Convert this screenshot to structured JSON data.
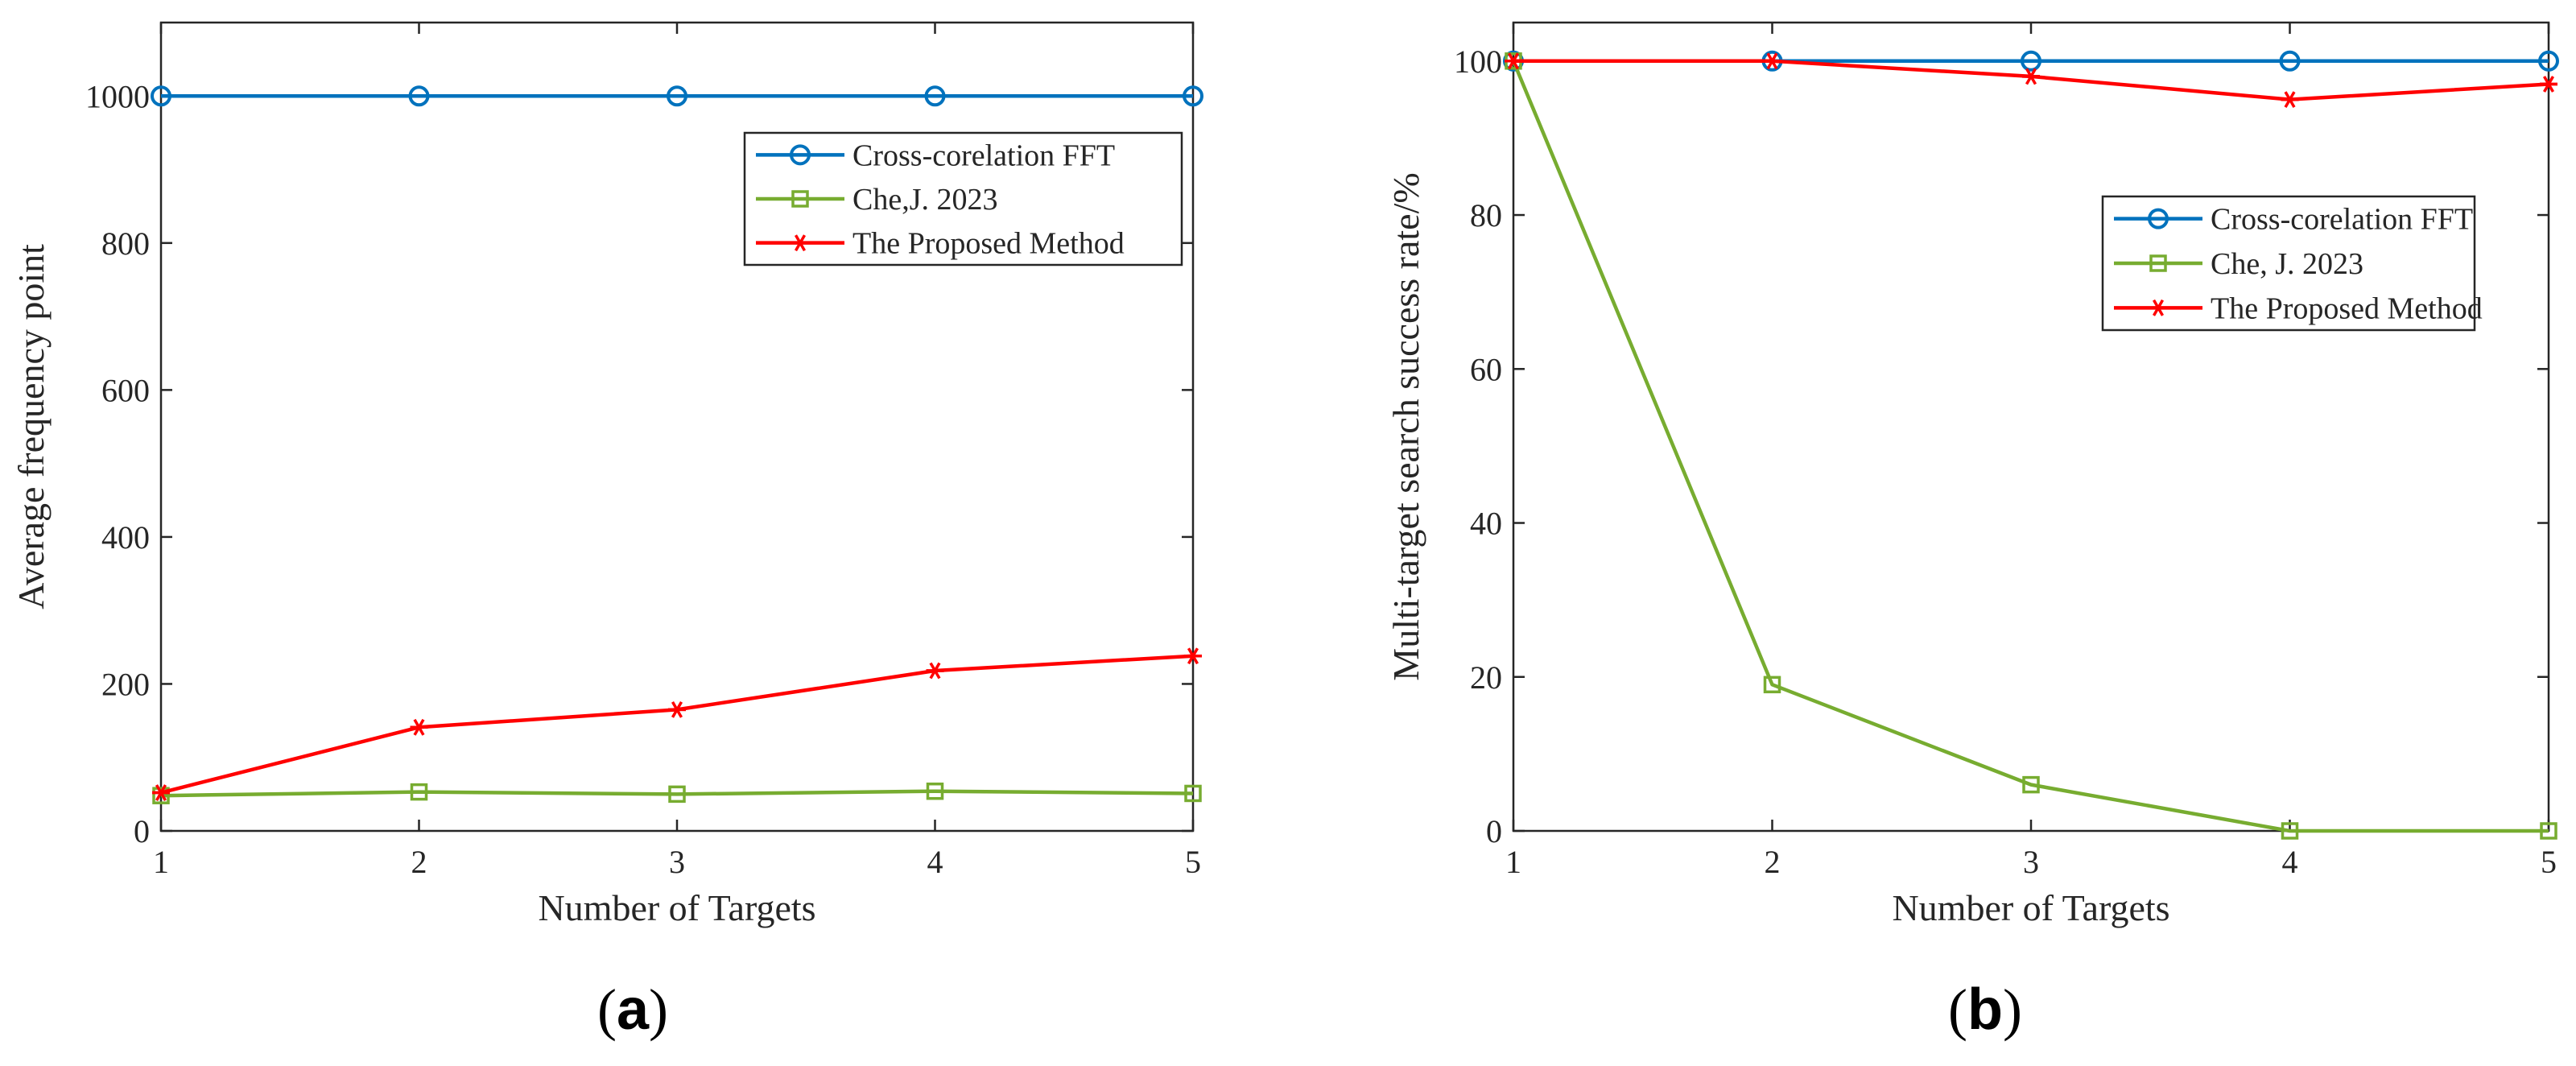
{
  "chart_data": [
    {
      "type": "line",
      "panel_label": "(a)",
      "panel_letter": "a",
      "title": "",
      "xlabel": "Number of Targets",
      "ylabel": "Average frequency point",
      "xlim": [
        1,
        5
      ],
      "ylim": [
        0,
        1100
      ],
      "xticks": [
        1,
        2,
        3,
        4,
        5
      ],
      "yticks": [
        0,
        200,
        400,
        600,
        800,
        1000
      ],
      "grid": false,
      "legend_position": "top-right",
      "x": [
        1,
        2,
        3,
        4,
        5
      ],
      "series": [
        {
          "name": "Cross-corelation FFT",
          "color": "#0072BD",
          "marker": "circle",
          "values": [
            1000,
            1000,
            1000,
            1000,
            1000
          ]
        },
        {
          "name": "Che,J. 2023",
          "color": "#77AC30",
          "marker": "square",
          "values": [
            48,
            53,
            50,
            54,
            51
          ]
        },
        {
          "name": "The Proposed Method",
          "color": "#FF0000",
          "marker": "asterisk",
          "values": [
            52,
            141,
            165,
            218,
            238
          ]
        }
      ]
    },
    {
      "type": "line",
      "panel_label": "(b)",
      "panel_letter": "b",
      "title": "",
      "xlabel": "Number of Targets",
      "ylabel": "Multi-target search success rate/%",
      "xlim": [
        1,
        5
      ],
      "ylim": [
        0,
        105
      ],
      "xticks": [
        1,
        2,
        3,
        4,
        5
      ],
      "yticks": [
        0,
        20,
        40,
        60,
        80,
        100
      ],
      "grid": false,
      "legend_position": "top-right",
      "x": [
        1,
        2,
        3,
        4,
        5
      ],
      "series": [
        {
          "name": "Cross-corelation FFT",
          "color": "#0072BD",
          "marker": "circle",
          "values": [
            100,
            100,
            100,
            100,
            100
          ]
        },
        {
          "name": "Che, J. 2023",
          "color": "#77AC30",
          "marker": "square",
          "values": [
            100,
            19,
            6,
            0,
            0
          ]
        },
        {
          "name": "The Proposed Method",
          "color": "#FF0000",
          "marker": "asterisk",
          "values": [
            100,
            100,
            98,
            95,
            97
          ]
        }
      ]
    }
  ]
}
